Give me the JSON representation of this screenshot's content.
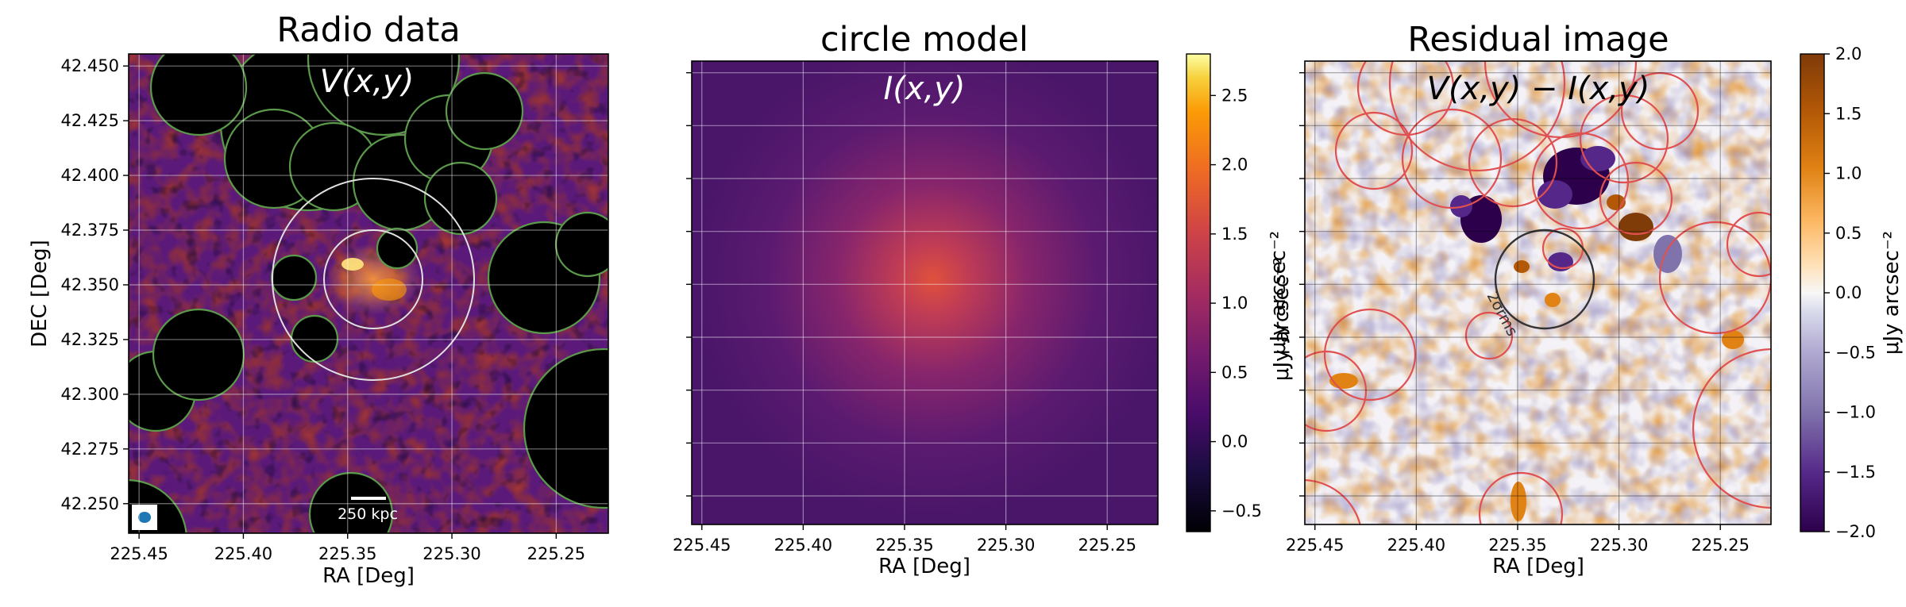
{
  "chart_data": [
    {
      "type": "heatmap",
      "title": "Radio data",
      "annotation": "V(x,y)",
      "xlabel": "RA [Deg]",
      "ylabel": "DEC [Deg]",
      "xlim": [
        225.455,
        225.225
      ],
      "ylim": [
        42.2365,
        42.4555
      ],
      "xticks": [
        225.45,
        225.4,
        225.35,
        225.3,
        225.25
      ],
      "xticklabels": [
        "225.45",
        "225.40",
        "225.35",
        "225.30",
        "225.25"
      ],
      "yticks": [
        42.25,
        42.275,
        42.3,
        42.325,
        42.35,
        42.375,
        42.4,
        42.425,
        42.45
      ],
      "yticklabels": [
        "42.250",
        "42.275",
        "42.300",
        "42.325",
        "42.350",
        "42.375",
        "42.400",
        "42.425",
        "42.450"
      ],
      "colormap": "inferno",
      "grid": true,
      "scalebar_label": "250 kpc",
      "masks_color": "#5a9a4a",
      "circle_color": "#e0e0e0",
      "beam_color": "#1f77b4"
    },
    {
      "type": "heatmap",
      "title": "circle model",
      "annotation": "I(x,y)",
      "xlabel": "RA [Deg]",
      "xlim": [
        225.455,
        225.225
      ],
      "ylim": [
        42.2365,
        42.4555
      ],
      "xticks": [
        225.45,
        225.4,
        225.35,
        225.3,
        225.25
      ],
      "xticklabels": [
        "225.45",
        "225.40",
        "225.35",
        "225.30",
        "225.25"
      ],
      "colormap": "inferno",
      "grid": true,
      "peak_value": 1.3,
      "center": [
        225.339,
        42.352
      ],
      "colorbar": {
        "range": [
          -0.65,
          2.8
        ],
        "ticks": [
          2.5,
          2.0,
          1.5,
          1.0,
          0.5,
          0.0,
          -0.5
        ],
        "ticklabels": [
          "2.5",
          "2.0",
          "1.5",
          "1.0",
          "0.5",
          "0.0",
          "−0.5"
        ],
        "label": "μJy arcsec⁻²"
      }
    },
    {
      "type": "heatmap",
      "title": "Residual image",
      "annotation": "V(x,y) − I(x,y)",
      "xlabel": "RA [Deg]",
      "xlim": [
        225.455,
        225.225
      ],
      "ylim": [
        42.2365,
        42.4555
      ],
      "xticks": [
        225.45,
        225.4,
        225.35,
        225.3,
        225.25
      ],
      "xticklabels": [
        "225.45",
        "225.40",
        "225.35",
        "225.30",
        "225.25"
      ],
      "colormap": "PuOr_r",
      "grid": true,
      "contour_label": "2σrms",
      "mask_outline_color": "#e05050",
      "colorbar": {
        "range": [
          -2.0,
          2.0
        ],
        "ticks": [
          2.0,
          1.5,
          1.0,
          0.5,
          0.0,
          -0.5,
          -1.0,
          -1.5,
          -2.0
        ],
        "ticklabels": [
          "2.0",
          "1.5",
          "1.0",
          "0.5",
          "0.0",
          "−0.5",
          "−1.0",
          "−1.5",
          "−2.0"
        ],
        "label": "μJy arcsec⁻²"
      }
    }
  ]
}
